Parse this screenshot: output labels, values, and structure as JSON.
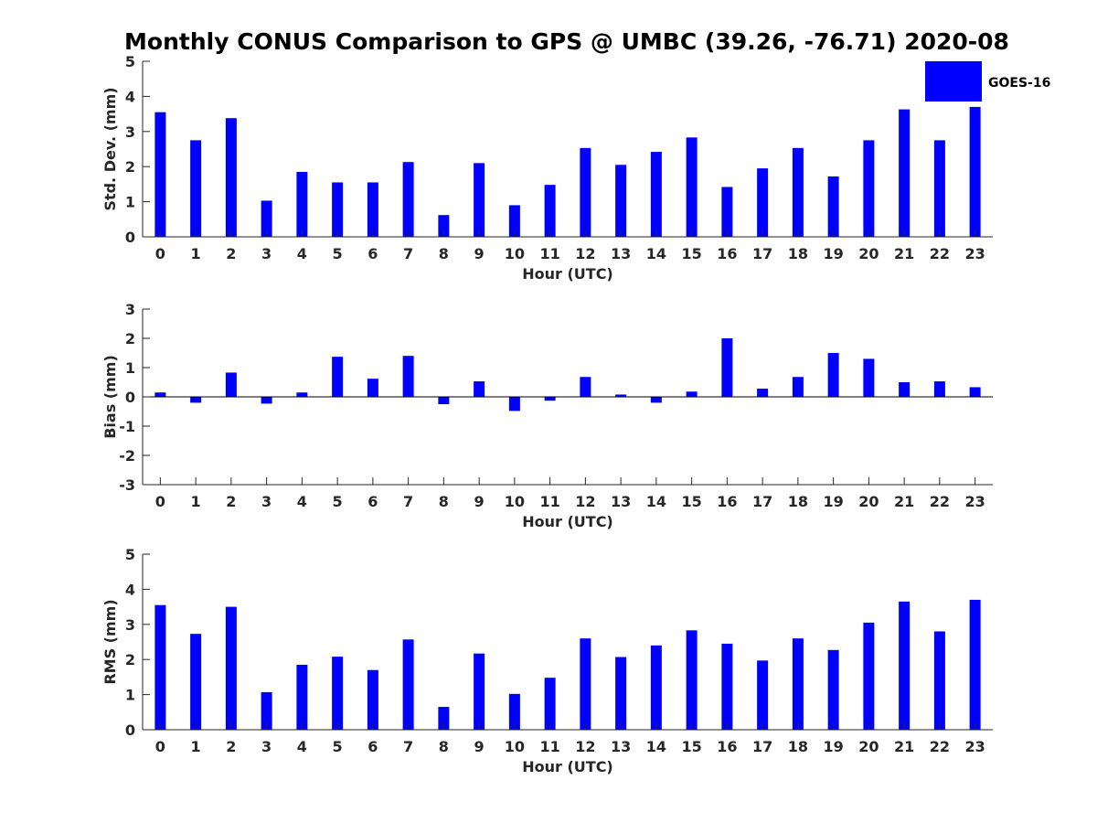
{
  "title": "Monthly CONUS Comparison to GPS @ UMBC (39.26, -76.71) 2020-08",
  "colors": {
    "bar": "#0000ff",
    "axis": "#262626",
    "zero_line": "#000000",
    "background": "#ffffff"
  },
  "legend": {
    "label": "GOES-16",
    "placement": "top-right"
  },
  "chart_data": [
    {
      "type": "bar",
      "name": "std-dev",
      "title": "",
      "xlabel": "Hour (UTC)",
      "ylabel": "Std. Dev. (mm)",
      "categories": [
        "0",
        "1",
        "2",
        "3",
        "4",
        "5",
        "6",
        "7",
        "8",
        "9",
        "10",
        "11",
        "12",
        "13",
        "14",
        "15",
        "16",
        "17",
        "18",
        "19",
        "20",
        "21",
        "22",
        "23"
      ],
      "series": [
        {
          "name": "GOES-16",
          "values": [
            3.55,
            2.75,
            3.38,
            1.03,
            1.85,
            1.55,
            1.55,
            2.13,
            0.62,
            2.1,
            0.9,
            1.48,
            2.53,
            2.05,
            2.42,
            2.83,
            1.42,
            1.95,
            2.53,
            1.72,
            2.75,
            3.63,
            2.75,
            3.7
          ]
        }
      ],
      "ylim": [
        0,
        5
      ],
      "yticks": [
        "0",
        "1",
        "2",
        "3",
        "4",
        "5"
      ],
      "grid": false
    },
    {
      "type": "bar",
      "name": "bias",
      "title": "",
      "xlabel": "Hour (UTC)",
      "ylabel": "Bias (mm)",
      "categories": [
        "0",
        "1",
        "2",
        "3",
        "4",
        "5",
        "6",
        "7",
        "8",
        "9",
        "10",
        "11",
        "12",
        "13",
        "14",
        "15",
        "16",
        "17",
        "18",
        "19",
        "20",
        "21",
        "22",
        "23"
      ],
      "series": [
        {
          "name": "GOES-16",
          "values": [
            0.15,
            -0.2,
            0.83,
            -0.23,
            0.15,
            1.37,
            0.62,
            1.4,
            -0.25,
            0.53,
            -0.48,
            -0.13,
            0.68,
            0.08,
            -0.2,
            0.18,
            2.0,
            0.28,
            0.68,
            1.5,
            1.3,
            0.5,
            0.53,
            0.33
          ]
        }
      ],
      "ylim": [
        -3,
        3
      ],
      "yticks": [
        "-3",
        "-2",
        "-1",
        "0",
        "1",
        "2",
        "3"
      ],
      "grid": false
    },
    {
      "type": "bar",
      "name": "rms",
      "title": "",
      "xlabel": "Hour (UTC)",
      "ylabel": "RMS (mm)",
      "categories": [
        "0",
        "1",
        "2",
        "3",
        "4",
        "5",
        "6",
        "7",
        "8",
        "9",
        "10",
        "11",
        "12",
        "13",
        "14",
        "15",
        "16",
        "17",
        "18",
        "19",
        "20",
        "21",
        "22",
        "23"
      ],
      "series": [
        {
          "name": "GOES-16",
          "values": [
            3.55,
            2.73,
            3.5,
            1.07,
            1.85,
            2.08,
            1.7,
            2.57,
            0.65,
            2.17,
            1.02,
            1.48,
            2.6,
            2.07,
            2.4,
            2.83,
            2.45,
            1.97,
            2.6,
            2.27,
            3.05,
            3.65,
            2.8,
            3.7
          ]
        }
      ],
      "ylim": [
        0,
        5
      ],
      "yticks": [
        "0",
        "1",
        "2",
        "3",
        "4",
        "5"
      ],
      "grid": false
    }
  ]
}
